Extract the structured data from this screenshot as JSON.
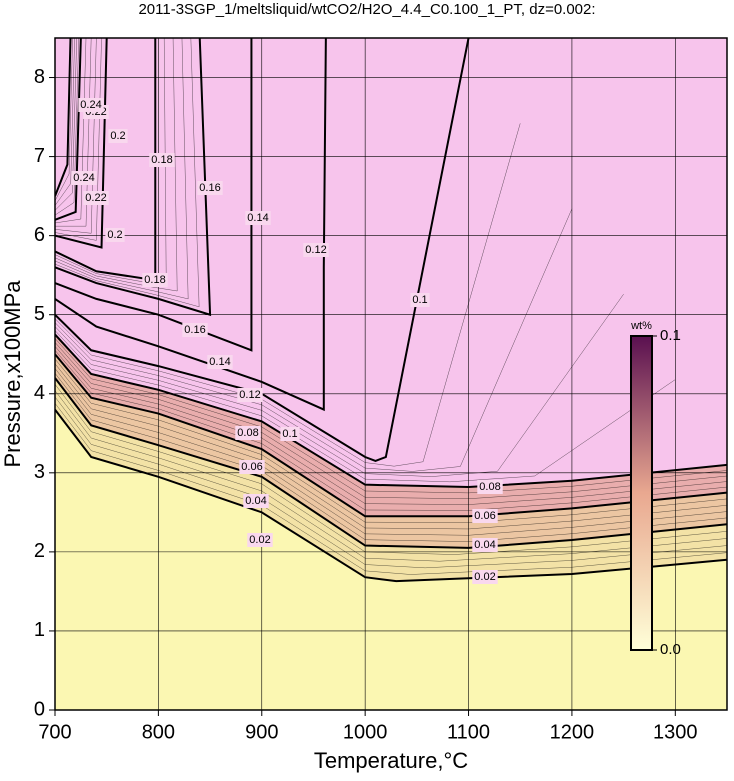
{
  "chart_data": {
    "type": "contour",
    "title": "2011-3SGP_1/meltsliquid/wtCO2/H2O_4.4_C0.100_1_PT, dz=0.002:",
    "x_label": "Temperature,°C",
    "y_label": "Pressure,x100MPa",
    "xlim": [
      700,
      1350
    ],
    "ylim": [
      0,
      8.5
    ],
    "xticks": [
      700,
      800,
      900,
      1000,
      1100,
      1200,
      1300
    ],
    "yticks": [
      0,
      1,
      2,
      3,
      4,
      5,
      6,
      7,
      8
    ],
    "grid": true,
    "background": "#fbf7b2",
    "contours": [
      {
        "level": 0.02,
        "color": "#f3e2a6",
        "x": [
          700,
          735,
          800,
          900,
          1000,
          1030,
          1200,
          1350
        ],
        "y": [
          3.8,
          3.2,
          2.95,
          2.5,
          1.68,
          1.63,
          1.72,
          1.9
        ]
      },
      {
        "level": 0.04,
        "color": "#ecc6a2",
        "x": [
          700,
          735,
          800,
          900,
          1000,
          1100,
          1200,
          1350
        ],
        "y": [
          4.2,
          3.6,
          3.35,
          2.95,
          2.08,
          2.05,
          2.15,
          2.35
        ]
      },
      {
        "level": 0.06,
        "color": "#e9adad",
        "x": [
          700,
          735,
          800,
          900,
          1000,
          1100,
          1200,
          1350
        ],
        "y": [
          4.5,
          3.95,
          3.75,
          3.3,
          2.45,
          2.45,
          2.55,
          2.75
        ]
      },
      {
        "level": 0.08,
        "color": "#f7c4ec",
        "x": [
          700,
          735,
          800,
          900,
          1000,
          1100,
          1200,
          1350
        ],
        "y": [
          4.75,
          4.25,
          4.05,
          3.65,
          2.85,
          2.82,
          2.9,
          3.1
        ]
      },
      {
        "level": 0.1,
        "x": [
          700,
          735,
          800,
          900,
          1000,
          1010,
          1020,
          1100
        ],
        "y": [
          5.0,
          4.55,
          4.35,
          4.0,
          3.2,
          3.15,
          3.2,
          8.5
        ]
      },
      {
        "level": 0.12,
        "x": [
          700,
          740,
          800,
          900,
          960,
          960,
          962
        ],
        "y": [
          5.2,
          4.85,
          4.6,
          4.15,
          3.8,
          5.6,
          8.5
        ]
      },
      {
        "level": 0.14,
        "x": [
          700,
          740,
          800,
          880,
          890,
          890
        ],
        "y": [
          5.4,
          5.2,
          5.0,
          4.6,
          4.55,
          8.5
        ]
      },
      {
        "level": 0.16,
        "x": [
          700,
          740,
          800,
          850,
          840
        ],
        "y": [
          5.6,
          5.4,
          5.2,
          5.0,
          8.5
        ]
      },
      {
        "level": 0.18,
        "x": [
          700,
          740,
          790,
          797,
          797
        ],
        "y": [
          5.8,
          5.55,
          5.45,
          5.5,
          8.5
        ]
      },
      {
        "level": 0.2,
        "x": [
          700,
          745,
          750
        ],
        "y": [
          6.0,
          5.85,
          8.5
        ]
      },
      {
        "level": 0.22,
        "x": [
          700,
          720,
          725
        ],
        "y": [
          6.2,
          6.3,
          8.5
        ]
      },
      {
        "level": 0.24,
        "x": [
          700,
          712,
          715
        ],
        "y": [
          6.5,
          6.9,
          8.5
        ]
      }
    ],
    "colorbar": {
      "label": "wt%",
      "colors": [
        "#ffffd8",
        "#e9a890",
        "#5a1050"
      ],
      "lim": [
        0,
        0.1
      ],
      "ticks": [
        {
          "value": 0,
          "label": "0.0"
        },
        0.1
      ]
    }
  }
}
